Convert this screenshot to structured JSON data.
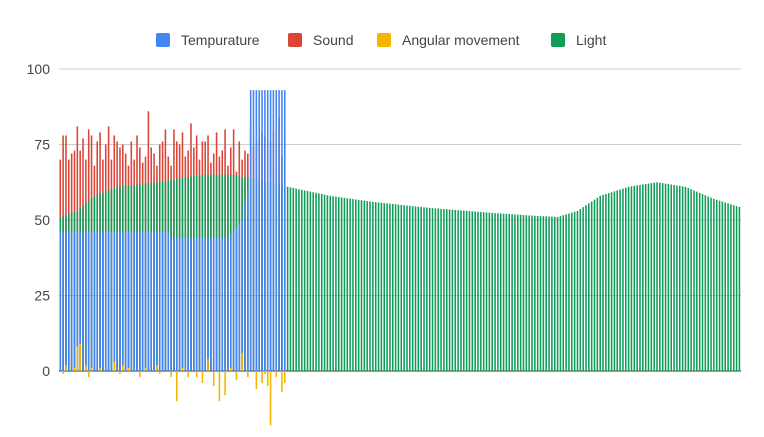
{
  "chart_data": {
    "type": "bar",
    "title": "",
    "xlabel": "",
    "ylabel": "",
    "ylim": [
      -20,
      100
    ],
    "y_ticks": [
      0,
      25,
      50,
      75,
      100
    ],
    "y_tick_labels": [
      "0",
      "25",
      "50",
      "75",
      "100"
    ],
    "grid": true,
    "legend_position": "top",
    "samples": 240,
    "series": [
      {
        "name": "Tempurature",
        "color": "#4285f4",
        "segments": [
          {
            "from": 0,
            "to": 38,
            "start": 46,
            "end": 46
          },
          {
            "from": 39,
            "to": 58,
            "start": 44,
            "end": 44
          },
          {
            "from": 59,
            "to": 64,
            "start": 44,
            "end": 50
          },
          {
            "from": 65,
            "to": 66,
            "start": 56,
            "end": 60
          },
          {
            "from": 67,
            "to": 79,
            "start": 93,
            "end": 93
          }
        ]
      },
      {
        "name": "Sound",
        "color": "#db4437",
        "values_first_80": [
          70,
          78,
          78,
          70,
          72,
          73,
          81,
          73,
          77,
          70,
          80,
          78,
          68,
          76,
          79,
          70,
          75,
          81,
          70,
          78,
          76,
          74,
          75,
          72,
          68,
          76,
          70,
          78,
          74,
          69,
          71,
          86,
          74,
          72,
          68,
          75,
          76,
          80,
          71,
          68,
          80,
          76,
          75,
          79,
          71,
          73,
          82,
          74,
          78,
          70,
          76,
          76,
          78,
          69,
          72,
          79,
          71,
          73,
          80,
          68,
          74,
          80,
          66,
          76,
          70,
          73,
          72,
          81,
          74,
          76,
          77,
          79,
          78,
          72,
          76,
          80,
          67,
          84,
          71,
          79
        ]
      },
      {
        "name": "Angular movement",
        "color": "#f4b400",
        "values_first_80": [
          0,
          -1,
          2,
          0,
          0,
          1,
          8,
          9,
          0,
          2,
          -2,
          1,
          0,
          0,
          1,
          0,
          0,
          0,
          0,
          3,
          0,
          -1,
          2,
          0,
          1,
          0,
          0,
          0,
          -2,
          0,
          1,
          0,
          0,
          0,
          2,
          -1,
          0,
          0,
          0,
          -2,
          0,
          -10,
          0,
          1,
          0,
          -2,
          0,
          0,
          -2,
          0,
          -4,
          0,
          4,
          0,
          -5,
          0,
          -10,
          0,
          -8,
          0,
          1,
          0,
          -3,
          0,
          6,
          0,
          -2,
          0,
          0,
          -6,
          0,
          -4,
          -1,
          -5,
          -18,
          0,
          -2,
          0,
          -7,
          -4
        ]
      },
      {
        "name": "Light",
        "color": "#0f9d58",
        "curve": [
          [
            0,
            51
          ],
          [
            6,
            53
          ],
          [
            12,
            58
          ],
          [
            20,
            61
          ],
          [
            30,
            62
          ],
          [
            40,
            63.5
          ],
          [
            50,
            65
          ],
          [
            60,
            65
          ],
          [
            66,
            64
          ],
          [
            80,
            61
          ],
          [
            95,
            58
          ],
          [
            110,
            56
          ],
          [
            130,
            54
          ],
          [
            150,
            52.5
          ],
          [
            165,
            51.5
          ],
          [
            175,
            51
          ],
          [
            182,
            53
          ],
          [
            190,
            58
          ],
          [
            200,
            61
          ],
          [
            210,
            62.5
          ],
          [
            220,
            61
          ],
          [
            230,
            57
          ],
          [
            240,
            54
          ]
        ]
      }
    ]
  }
}
